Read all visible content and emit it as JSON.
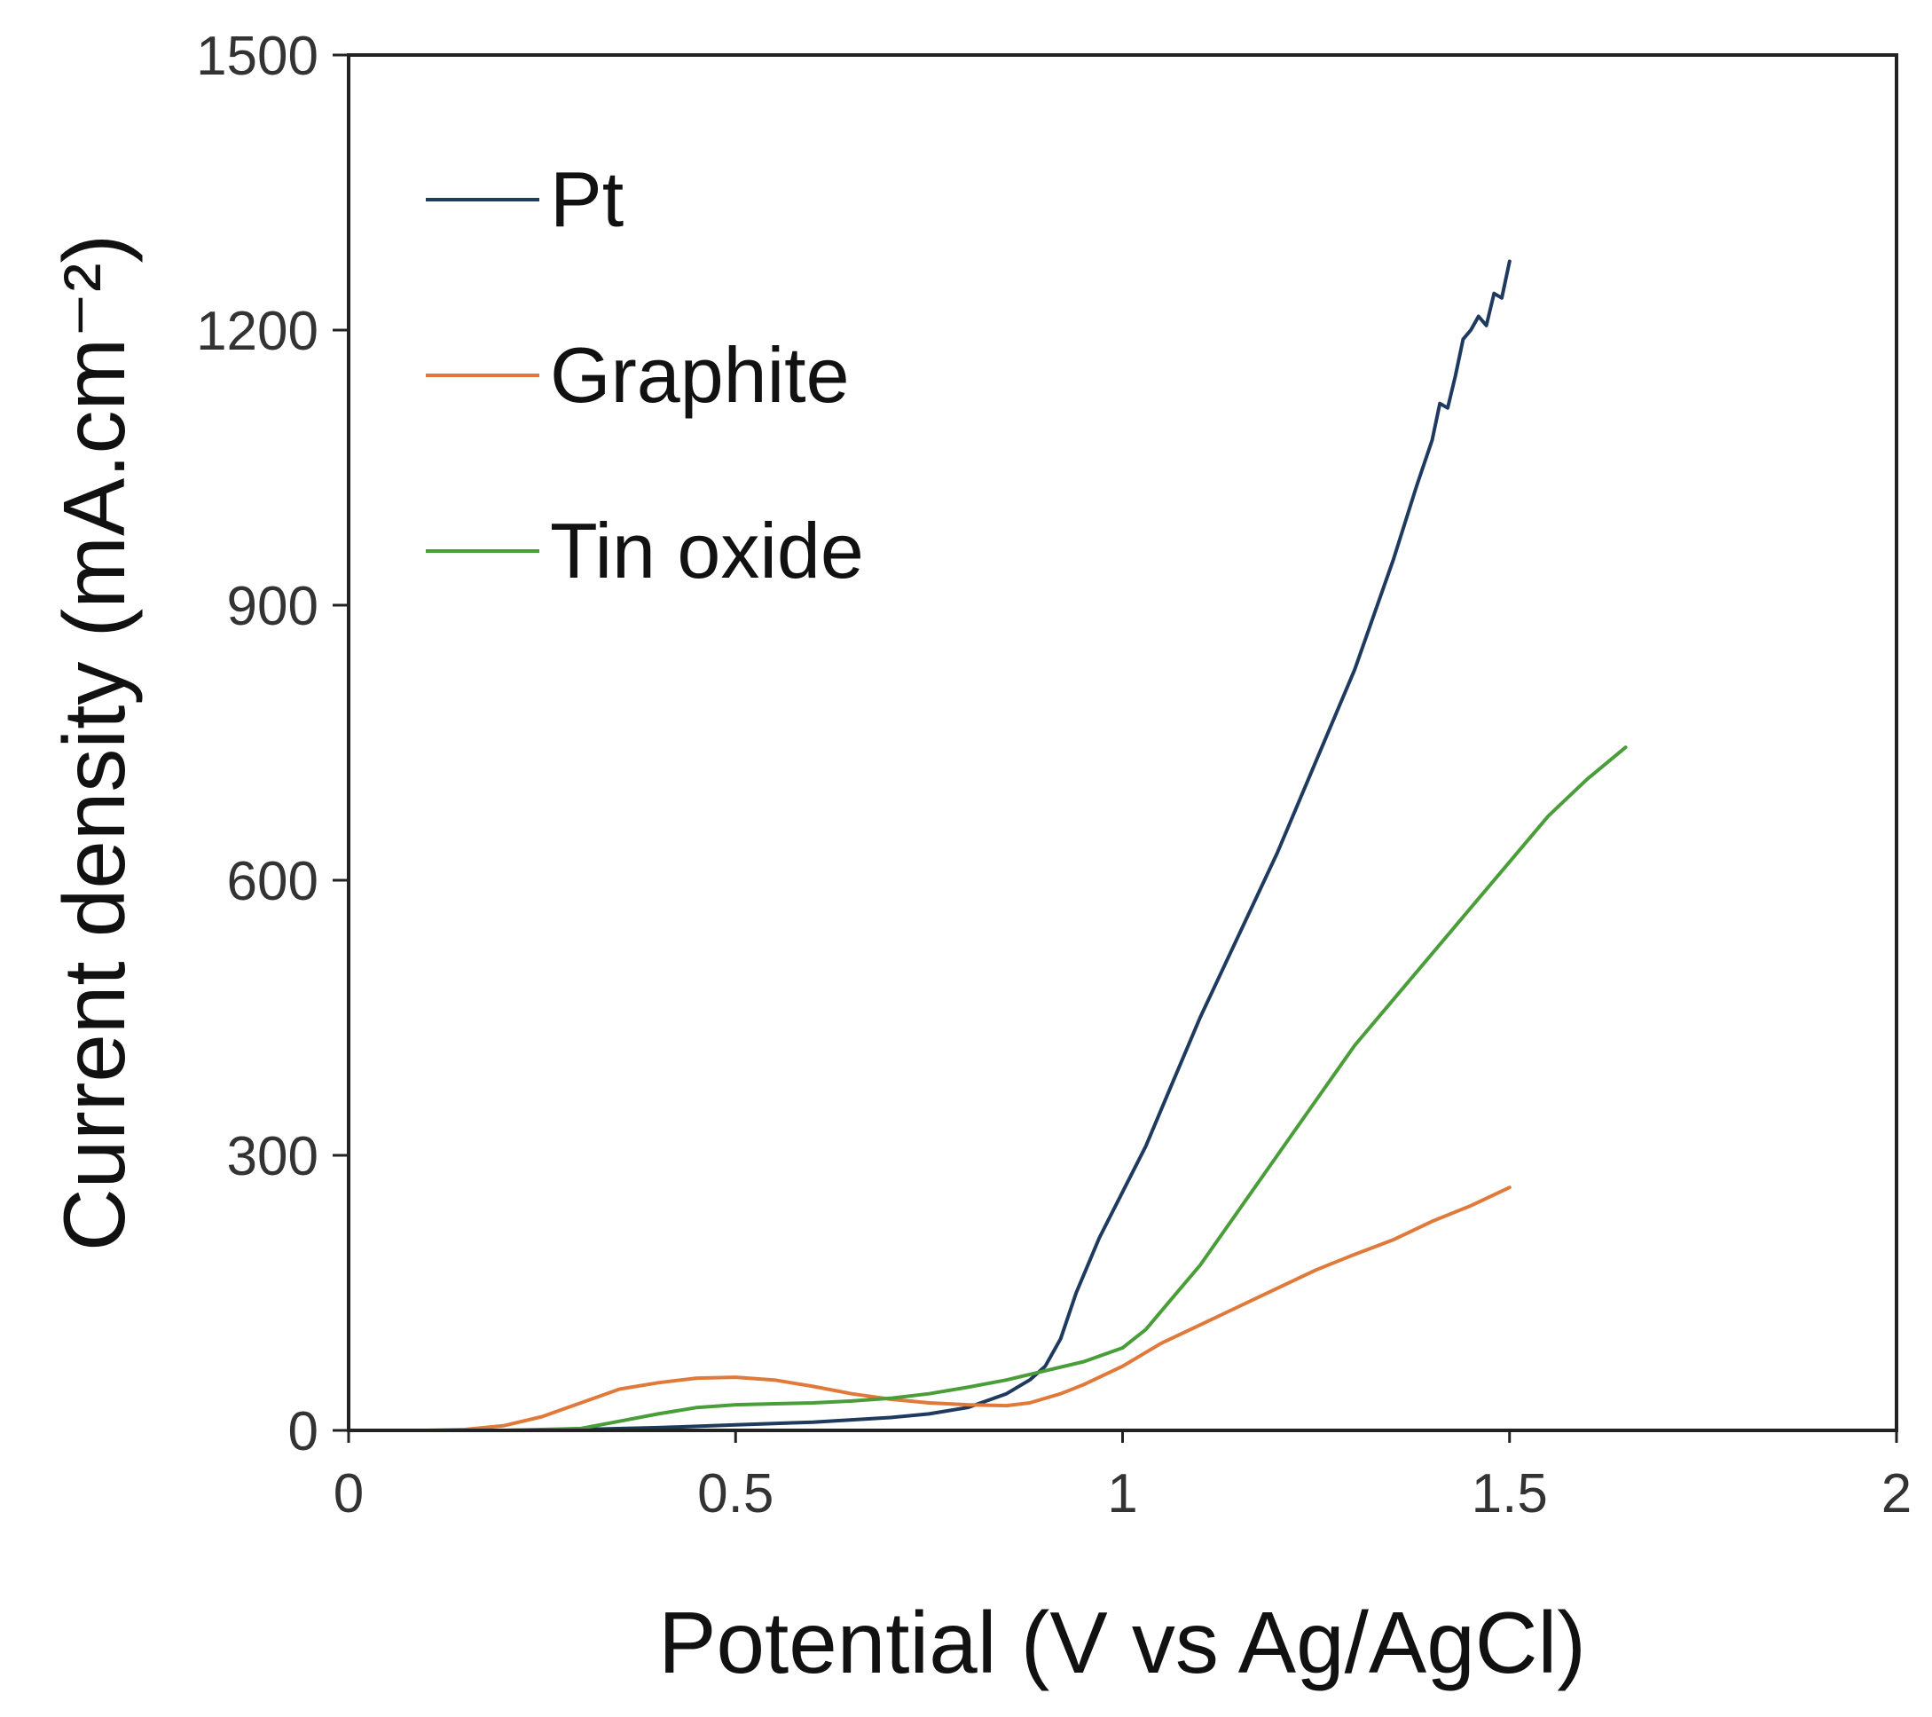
{
  "chart_data": {
    "type": "line",
    "title": "",
    "xlabel": "Potential (V vs Ag/AgCl)",
    "ylabel": "Current density (mA.cm⁻²)",
    "xlim": [
      0,
      2
    ],
    "ylim": [
      0,
      1500
    ],
    "xticks": [
      {
        "value": 0,
        "label": "0"
      },
      {
        "value": 0.5,
        "label": "0.5"
      },
      {
        "value": 1,
        "label": "1"
      },
      {
        "value": 1.5,
        "label": "1.5"
      },
      {
        "value": 2,
        "label": "2"
      }
    ],
    "yticks": [
      {
        "value": 0,
        "label": "0"
      },
      {
        "value": 300,
        "label": "300"
      },
      {
        "value": 600,
        "label": "600"
      },
      {
        "value": 900,
        "label": "900"
      },
      {
        "value": 1200,
        "label": "1200"
      },
      {
        "value": 1500,
        "label": "1500"
      }
    ],
    "grid": false,
    "legend_position": "top-left",
    "series": [
      {
        "name": "Pt",
        "color": "#1f3a5f",
        "points": [
          [
            0,
            0
          ],
          [
            0.1,
            0
          ],
          [
            0.2,
            0
          ],
          [
            0.3,
            1
          ],
          [
            0.4,
            3
          ],
          [
            0.5,
            6
          ],
          [
            0.6,
            9
          ],
          [
            0.7,
            14
          ],
          [
            0.75,
            18
          ],
          [
            0.8,
            25
          ],
          [
            0.85,
            40
          ],
          [
            0.88,
            55
          ],
          [
            0.9,
            70
          ],
          [
            0.92,
            100
          ],
          [
            0.94,
            150
          ],
          [
            0.97,
            210
          ],
          [
            1.0,
            260
          ],
          [
            1.03,
            310
          ],
          [
            1.06,
            370
          ],
          [
            1.1,
            450
          ],
          [
            1.15,
            540
          ],
          [
            1.2,
            630
          ],
          [
            1.25,
            730
          ],
          [
            1.3,
            830
          ],
          [
            1.35,
            950
          ],
          [
            1.38,
            1030
          ],
          [
            1.4,
            1080
          ],
          [
            1.41,
            1120
          ],
          [
            1.42,
            1115
          ],
          [
            1.43,
            1150
          ],
          [
            1.44,
            1190
          ],
          [
            1.45,
            1200
          ],
          [
            1.46,
            1215
          ],
          [
            1.47,
            1205
          ],
          [
            1.48,
            1240
          ],
          [
            1.49,
            1235
          ],
          [
            1.5,
            1275
          ]
        ]
      },
      {
        "name": "Graphite",
        "color": "#e07a3a",
        "points": [
          [
            0,
            0
          ],
          [
            0.1,
            0
          ],
          [
            0.15,
            1
          ],
          [
            0.2,
            5
          ],
          [
            0.25,
            15
          ],
          [
            0.3,
            30
          ],
          [
            0.35,
            45
          ],
          [
            0.4,
            52
          ],
          [
            0.45,
            57
          ],
          [
            0.5,
            58
          ],
          [
            0.55,
            55
          ],
          [
            0.6,
            48
          ],
          [
            0.65,
            40
          ],
          [
            0.7,
            34
          ],
          [
            0.75,
            30
          ],
          [
            0.8,
            28
          ],
          [
            0.85,
            27
          ],
          [
            0.88,
            30
          ],
          [
            0.92,
            40
          ],
          [
            0.95,
            50
          ],
          [
            1.0,
            70
          ],
          [
            1.05,
            95
          ],
          [
            1.1,
            115
          ],
          [
            1.15,
            135
          ],
          [
            1.2,
            155
          ],
          [
            1.25,
            175
          ],
          [
            1.3,
            192
          ],
          [
            1.35,
            208
          ],
          [
            1.4,
            228
          ],
          [
            1.45,
            245
          ],
          [
            1.5,
            265
          ]
        ]
      },
      {
        "name": "Tin oxide",
        "color": "#4a9e3a",
        "points": [
          [
            0,
            0
          ],
          [
            0.1,
            0
          ],
          [
            0.2,
            0
          ],
          [
            0.3,
            2
          ],
          [
            0.35,
            10
          ],
          [
            0.4,
            18
          ],
          [
            0.45,
            25
          ],
          [
            0.5,
            28
          ],
          [
            0.55,
            29
          ],
          [
            0.6,
            30
          ],
          [
            0.65,
            32
          ],
          [
            0.7,
            35
          ],
          [
            0.75,
            40
          ],
          [
            0.8,
            47
          ],
          [
            0.85,
            55
          ],
          [
            0.9,
            65
          ],
          [
            0.95,
            75
          ],
          [
            1.0,
            90
          ],
          [
            1.03,
            110
          ],
          [
            1.06,
            140
          ],
          [
            1.1,
            180
          ],
          [
            1.15,
            240
          ],
          [
            1.2,
            300
          ],
          [
            1.25,
            360
          ],
          [
            1.3,
            420
          ],
          [
            1.35,
            470
          ],
          [
            1.4,
            520
          ],
          [
            1.45,
            570
          ],
          [
            1.5,
            620
          ],
          [
            1.55,
            670
          ],
          [
            1.6,
            710
          ],
          [
            1.65,
            745
          ]
        ]
      }
    ]
  }
}
